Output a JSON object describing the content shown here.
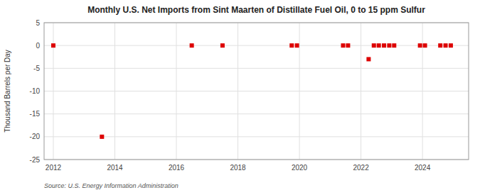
{
  "chart_data": {
    "type": "scatter",
    "title": "Monthly U.S. Net Imports from Sint Maarten of Distillate Fuel Oil, 0 to 15 ppm Sulfur",
    "y_label": "Thousand Barrels per Day",
    "annotations": [
      "Source: U.S. Energy Information Administration"
    ],
    "x": [
      2012.0,
      2013.58,
      2016.5,
      2017.5,
      2019.75,
      2019.92,
      2021.42,
      2021.58,
      2022.25,
      2022.42,
      2022.58,
      2022.75,
      2022.92,
      2023.08,
      2023.92,
      2024.08,
      2024.58,
      2024.75,
      2024.92
    ],
    "values": [
      0,
      -20,
      0,
      0,
      0,
      0,
      0,
      0,
      -3,
      0,
      0,
      0,
      0,
      0,
      0,
      0,
      0,
      0,
      0
    ],
    "color": "#dd0000",
    "marker": "square",
    "xlim": [
      2011.7,
      2025.5
    ],
    "xticks": [
      2012,
      2014,
      2016,
      2018,
      2020,
      2022,
      2024
    ],
    "ylim": [
      -25,
      5
    ],
    "yticks": [
      5,
      0,
      -5,
      -10,
      -15,
      -20,
      -25
    ],
    "grid": true
  }
}
